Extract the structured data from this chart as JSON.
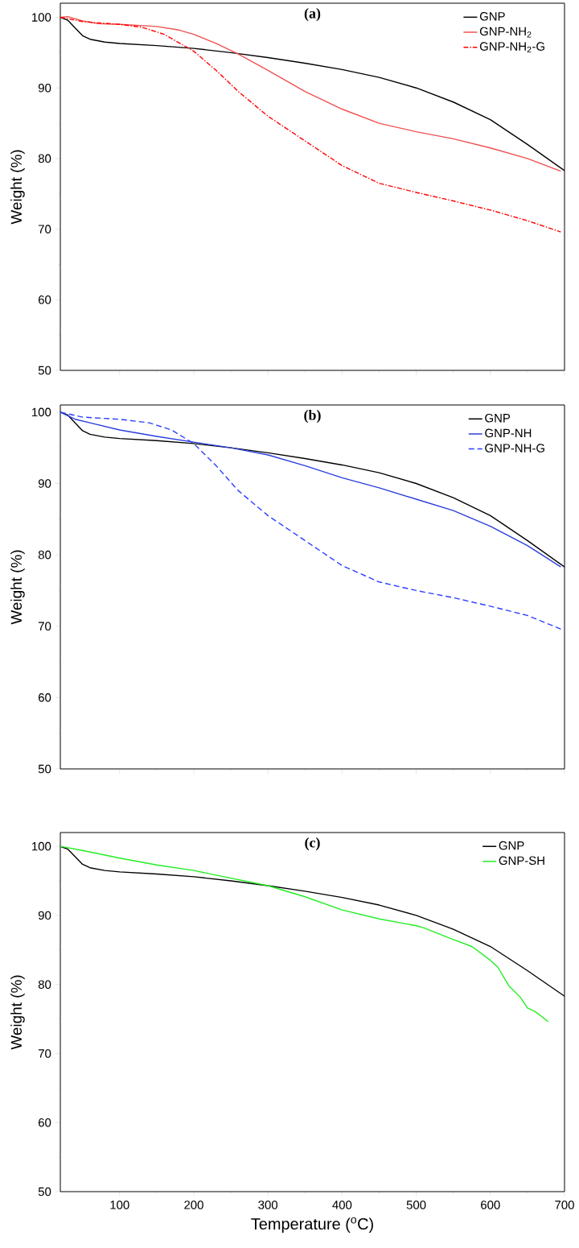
{
  "chart_data": [
    {
      "type": "line",
      "title": "(a)",
      "ylabel": "Weight (%)",
      "xlim": [
        20,
        700
      ],
      "ylim": [
        50,
        102
      ],
      "xticks": [
        100,
        200,
        300,
        400,
        500,
        600,
        700
      ],
      "yticks": [
        50,
        60,
        70,
        80,
        90,
        100
      ],
      "tick_labels": "y",
      "legend": "top right",
      "grid": false,
      "marker": "none",
      "series": [
        {
          "name": "GNP",
          "color": "#000000",
          "line_style": "solid",
          "x": [
            20,
            30,
            40,
            50,
            60,
            80,
            100,
            150,
            200,
            250,
            300,
            350,
            400,
            450,
            500,
            550,
            600,
            650,
            700
          ],
          "values": [
            100,
            99.6,
            98.5,
            97.4,
            96.9,
            96.5,
            96.3,
            96,
            95.6,
            95,
            94.3,
            93.5,
            92.6,
            91.5,
            90,
            88,
            85.5,
            82,
            78.3
          ]
        },
        {
          "name": "GNP-NH$_{2}$",
          "color": "#f05050",
          "line_style": "solid",
          "x": [
            20,
            30,
            50,
            70,
            100,
            150,
            180,
            200,
            230,
            260,
            300,
            350,
            400,
            450,
            500,
            550,
            600,
            650,
            695
          ],
          "values": [
            100,
            100.1,
            99.5,
            99.1,
            99,
            98.7,
            98.2,
            97.6,
            96.3,
            94.8,
            92.5,
            89.5,
            87,
            85,
            83.8,
            82.8,
            81.5,
            80,
            78.2
          ]
        },
        {
          "name": "GNP-NH$_{2}$-G",
          "color": "#ff0000",
          "line_style": "dashdot",
          "x": [
            20,
            50,
            100,
            130,
            160,
            200,
            230,
            260,
            300,
            350,
            400,
            450,
            500,
            550,
            600,
            650,
            695
          ],
          "values": [
            100,
            99.4,
            99,
            98.6,
            97.6,
            95.2,
            92.5,
            89.5,
            86,
            82.5,
            79,
            76.5,
            75.2,
            74,
            72.7,
            71.2,
            69.6
          ]
        }
      ]
    },
    {
      "type": "line",
      "title": "(b)",
      "ylabel": "Weight (%)",
      "xlim": [
        20,
        700
      ],
      "ylim": [
        50,
        101
      ],
      "xticks": [
        100,
        200,
        300,
        400,
        500,
        600,
        700
      ],
      "yticks": [
        50,
        60,
        70,
        80,
        90,
        100
      ],
      "tick_labels": "y",
      "legend": "top right",
      "grid": false,
      "marker": "none",
      "series": [
        {
          "name": "GNP",
          "color": "#000000",
          "line_style": "solid",
          "x": [
            20,
            30,
            40,
            50,
            60,
            80,
            100,
            150,
            200,
            250,
            300,
            350,
            400,
            450,
            500,
            550,
            600,
            650,
            700
          ],
          "values": [
            100,
            99.6,
            98.5,
            97.4,
            96.9,
            96.5,
            96.3,
            96,
            95.6,
            95,
            94.3,
            93.5,
            92.6,
            91.5,
            90,
            88,
            85.5,
            82,
            78.3
          ]
        },
        {
          "name": "GNP-NH",
          "color": "#2a3fdc",
          "line_style": "solid",
          "x": [
            20,
            40,
            60,
            100,
            150,
            200,
            250,
            300,
            350,
            400,
            450,
            500,
            550,
            600,
            650,
            695
          ],
          "values": [
            100,
            99,
            98.5,
            97.5,
            96.6,
            95.8,
            95,
            94,
            92.5,
            90.8,
            89.4,
            87.8,
            86.2,
            84,
            81.3,
            78.3
          ]
        },
        {
          "name": "GNP-NH-G",
          "color": "#2a3fff",
          "line_style": "dashed",
          "x": [
            20,
            50,
            100,
            140,
            170,
            200,
            230,
            260,
            300,
            350,
            400,
            450,
            500,
            550,
            600,
            650,
            695
          ],
          "values": [
            100,
            99.3,
            99,
            98.5,
            97.5,
            95.6,
            92.5,
            89,
            85.5,
            82,
            78.5,
            76.2,
            75,
            74,
            72.8,
            71.5,
            69.6
          ]
        }
      ]
    },
    {
      "type": "line",
      "title": "(c)",
      "xlabel": "Temperature ($^{o}$C)",
      "ylabel": "Weight (%)",
      "xlim": [
        20,
        700
      ],
      "ylim": [
        50,
        102
      ],
      "xticks": [
        100,
        200,
        300,
        400,
        500,
        600,
        700
      ],
      "yticks": [
        50,
        60,
        70,
        80,
        90,
        100
      ],
      "legend": "top right",
      "grid": false,
      "marker": "none",
      "series": [
        {
          "name": "GNP",
          "color": "#000000",
          "line_style": "solid",
          "x": [
            20,
            30,
            40,
            50,
            60,
            80,
            100,
            150,
            200,
            250,
            300,
            350,
            400,
            450,
            500,
            550,
            600,
            650,
            700
          ],
          "values": [
            100,
            99.6,
            98.5,
            97.4,
            96.9,
            96.5,
            96.3,
            96,
            95.6,
            95,
            94.3,
            93.5,
            92.6,
            91.5,
            90,
            88,
            85.5,
            82,
            78.3
          ]
        },
        {
          "name": "GNP-SH",
          "color": "#22ee22",
          "line_style": "solid",
          "x": [
            20,
            50,
            100,
            150,
            200,
            250,
            300,
            350,
            400,
            450,
            500,
            510,
            550,
            575,
            600,
            610,
            625,
            640,
            650,
            660,
            670,
            678
          ],
          "values": [
            100,
            99.4,
            98.3,
            97.3,
            96.5,
            95.4,
            94.3,
            92.7,
            90.8,
            89.5,
            88.5,
            88.2,
            86.5,
            85.5,
            83.5,
            82.5,
            79.8,
            78.2,
            76.6,
            76.1,
            75.3,
            74.6
          ]
        }
      ]
    }
  ]
}
